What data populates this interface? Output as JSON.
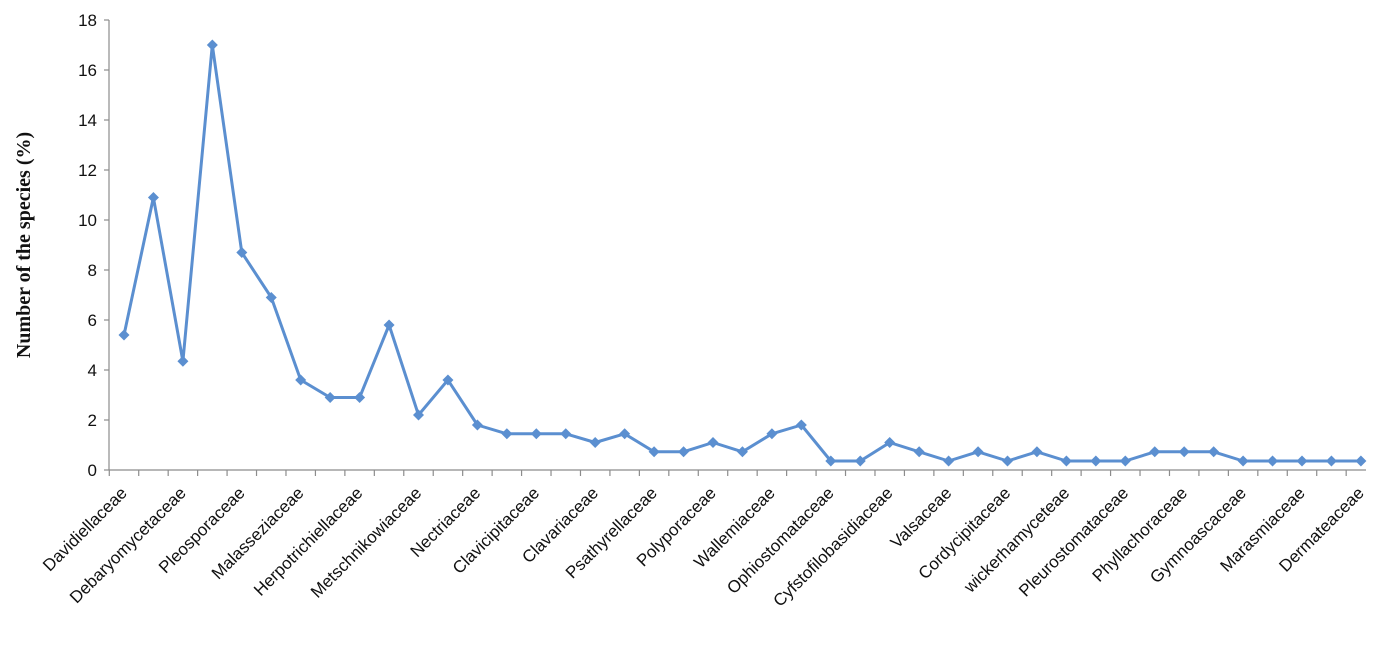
{
  "chart_data": {
    "type": "line",
    "title": "",
    "xlabel": "",
    "ylabel": "Number of the species (%)",
    "ylim": [
      0,
      18
    ],
    "yticks": [
      0,
      2,
      4,
      6,
      8,
      10,
      12,
      14,
      16,
      18
    ],
    "grid": false,
    "legend": "none",
    "color": "#5b8fd0",
    "categories": [
      "Davidiellaceae",
      "",
      "Debaryomycetaceae",
      "",
      "Pleosporaceae",
      "",
      "Malasseziaceae",
      "",
      "Herpotrichiellaceae",
      "",
      "Metschnikowiaceae",
      "",
      "Nectriaceae",
      "",
      "Clavicipitaceae",
      "",
      "Clavariaceae",
      "",
      "Psathyrellaceae",
      "",
      "Polyporaceae",
      "",
      "Wallemiaceae",
      "",
      "Ophiostomataceae",
      "",
      "Cyfstofilobasidiaceae",
      "",
      "Valsaceae",
      "",
      "Cordycipitaceae",
      "",
      "wickerhamyceteae",
      "",
      "Pleurostomataceae",
      "",
      "Phyllachoraceae",
      "",
      "Gymnoascaceae",
      "",
      "Marasmiaceae",
      "",
      "Dermateaceae"
    ],
    "series": [
      {
        "values": [
          5.4,
          10.9,
          4.35,
          17.0,
          8.7,
          6.9,
          3.6,
          2.9,
          2.9,
          5.8,
          2.2,
          3.6,
          1.8,
          1.45,
          1.45,
          1.45,
          1.1,
          1.45,
          0.73,
          0.73,
          1.1,
          0.73,
          1.45,
          1.8,
          0.36,
          0.36,
          1.1,
          0.73,
          0.36,
          0.73,
          0.36,
          0.73,
          0.36,
          0.36,
          0.36,
          0.73,
          0.73,
          0.73,
          0.36,
          0.36,
          0.36,
          0.36,
          0.36
        ]
      }
    ]
  }
}
